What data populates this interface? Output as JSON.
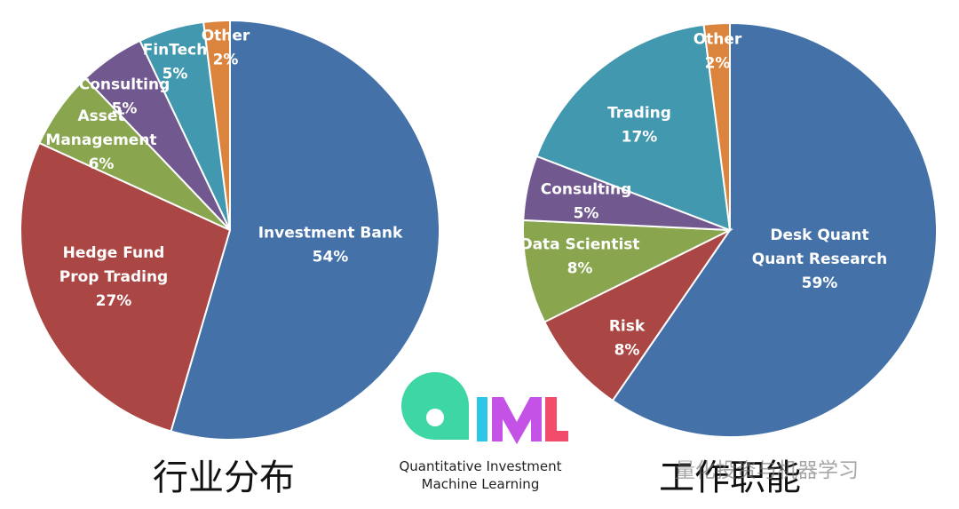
{
  "chart_data": [
    {
      "type": "pie",
      "caption": "行业分布",
      "slices": [
        {
          "label": [
            "Investment Bank"
          ],
          "value": 54,
          "pct": "54%",
          "color": "#4472A8"
        },
        {
          "label": [
            "Hedge Fund",
            "Prop Trading"
          ],
          "value": 27,
          "pct": "27%",
          "color": "#AA4643"
        },
        {
          "label": [
            "Asset",
            "Management"
          ],
          "value": 6,
          "pct": "6%",
          "color": "#89A54E"
        },
        {
          "label": [
            "Consulting"
          ],
          "value": 5,
          "pct": "5%",
          "color": "#71588F"
        },
        {
          "label": [
            "FinTech"
          ],
          "value": 5,
          "pct": "5%",
          "color": "#4198AF"
        },
        {
          "label": [
            "Other"
          ],
          "value": 2,
          "pct": "2%",
          "color": "#DB843D"
        }
      ]
    },
    {
      "type": "pie",
      "caption": "工作职能",
      "slices": [
        {
          "label": [
            "Desk Quant",
            "Quant Research"
          ],
          "value": 59,
          "pct": "59%",
          "color": "#4472A8"
        },
        {
          "label": [
            "Risk"
          ],
          "value": 8,
          "pct": "8%",
          "color": "#AA4643"
        },
        {
          "label": [
            "Data Scientist"
          ],
          "value": 8,
          "pct": "8%",
          "color": "#89A54E"
        },
        {
          "label": [
            "Consulting"
          ],
          "value": 5,
          "pct": "5%",
          "color": "#71588F"
        },
        {
          "label": [
            "Trading"
          ],
          "value": 17,
          "pct": "17%",
          "color": "#4198AF"
        },
        {
          "label": [
            "Other"
          ],
          "value": 2,
          "pct": "2%",
          "color": "#DB843D"
        }
      ]
    }
  ],
  "logo": {
    "line1": "Quantitative Investment",
    "line2": "Machine Learning"
  },
  "watermark": "量化投资与机器学习"
}
